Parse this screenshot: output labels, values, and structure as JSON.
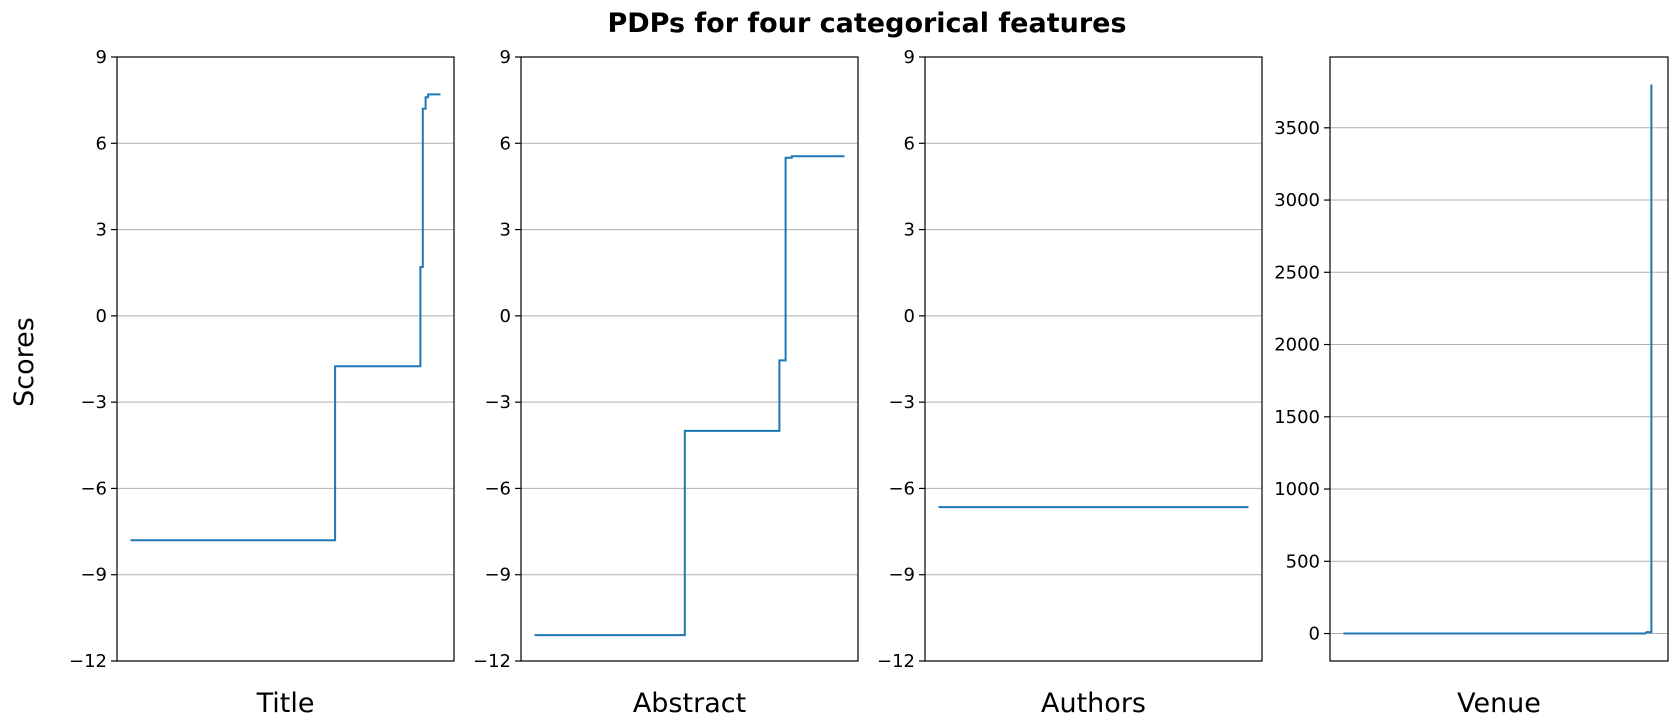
{
  "figure": {
    "title": "PDPs for four categorical features",
    "ylabel": "Scores"
  },
  "style": {
    "line_color": "#1f77b4",
    "grid_color": "#b0b0b0"
  },
  "chart_data": [
    {
      "type": "line",
      "xlabel": "Title",
      "ylabel": "Scores",
      "ylim": [
        -12,
        9
      ],
      "yticks": [
        -12,
        -9,
        -6,
        -3,
        0,
        3,
        6,
        9
      ],
      "ytick_labels": [
        "−12",
        "−9",
        "−6",
        "−3",
        "0",
        "3",
        "6",
        "9"
      ],
      "grid": "y",
      "xticks": [],
      "series": [
        {
          "x": [
            0,
            0.66,
            0.66,
            0.935,
            0.935,
            0.943,
            0.943,
            0.952,
            0.952,
            0.96,
            0.96,
            1.0
          ],
          "y": [
            -7.8,
            -7.8,
            -1.75,
            -1.75,
            1.7,
            1.7,
            7.2,
            7.2,
            7.6,
            7.6,
            7.7,
            7.7
          ]
        }
      ]
    },
    {
      "type": "line",
      "xlabel": "Abstract",
      "ylim": [
        -12,
        9
      ],
      "yticks": [
        -12,
        -9,
        -6,
        -3,
        0,
        3,
        6,
        9
      ],
      "ytick_labels": [
        "−12",
        "−9",
        "−6",
        "−3",
        "0",
        "3",
        "6",
        "9"
      ],
      "grid": "y",
      "xticks": [],
      "series": [
        {
          "x": [
            0,
            0.485,
            0.485,
            0.79,
            0.79,
            0.81,
            0.81,
            0.83,
            0.83,
            1.0
          ],
          "y": [
            -11.1,
            -11.1,
            -4.0,
            -4.0,
            -1.55,
            -1.55,
            5.5,
            5.5,
            5.55,
            5.55
          ]
        }
      ]
    },
    {
      "type": "line",
      "xlabel": "Authors",
      "ylim": [
        -12,
        9
      ],
      "yticks": [
        -12,
        -9,
        -6,
        -3,
        0,
        3,
        6,
        9
      ],
      "ytick_labels": [
        "−12",
        "−9",
        "−6",
        "−3",
        "0",
        "3",
        "6",
        "9"
      ],
      "grid": "y",
      "xticks": [],
      "series": [
        {
          "x": [
            0,
            1.0
          ],
          "y": [
            -6.65,
            -6.65
          ]
        }
      ]
    },
    {
      "type": "line",
      "xlabel": "Venue",
      "ylim": [
        -190,
        3990
      ],
      "yticks": [
        0,
        500,
        1000,
        1500,
        2000,
        2500,
        3000,
        3500
      ],
      "ytick_labels": [
        "0",
        "500",
        "1000",
        "1500",
        "2000",
        "2500",
        "3000",
        "3500"
      ],
      "grid": "y",
      "xticks": [],
      "series": [
        {
          "x": [
            0,
            0.97,
            0.975,
            0.975,
            0.99,
            0.99
          ],
          "y": [
            0,
            0,
            10,
            10,
            10,
            3800
          ]
        }
      ]
    }
  ]
}
